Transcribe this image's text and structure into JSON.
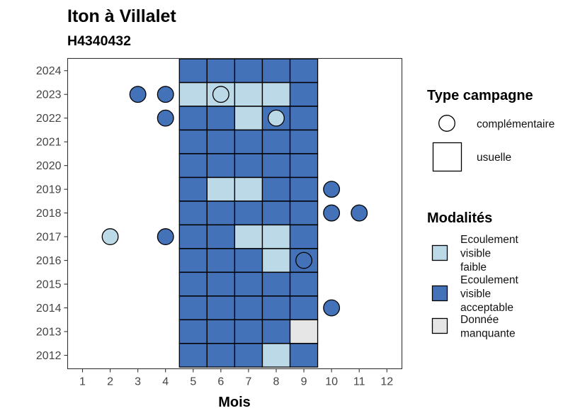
{
  "chart_data": {
    "type": "heatmap",
    "title": "Iton à Villalet",
    "subtitle": "H4340432",
    "xlabel": "Mois",
    "ylabel": "",
    "x_categories": [
      1,
      2,
      3,
      4,
      5,
      6,
      7,
      8,
      9,
      10,
      11,
      12
    ],
    "y_categories": [
      2012,
      2013,
      2014,
      2015,
      2016,
      2017,
      2018,
      2019,
      2020,
      2021,
      2022,
      2023,
      2024
    ],
    "grid": false,
    "legend_placement": "right",
    "legend_shape": {
      "title": "Type campagne",
      "entries": [
        {
          "key": "complementaire",
          "label": "complémentaire",
          "shape": "circle"
        },
        {
          "key": "usuelle",
          "label": "usuelle",
          "shape": "square"
        }
      ]
    },
    "legend_fill": {
      "title": "Modalités",
      "entries": [
        {
          "key": "faible",
          "label": [
            "Ecoulement",
            "visible",
            "faible"
          ],
          "color": "#bcd9e8"
        },
        {
          "key": "acceptable",
          "label": [
            "Ecoulement",
            "visible",
            "acceptable"
          ],
          "color": "#4472b8"
        },
        {
          "key": "manquante",
          "label": [
            "Donnée",
            "manquante"
          ],
          "color": "#e6e6e6"
        }
      ]
    },
    "colors": {
      "faible": "#bcd9e8",
      "acceptable": "#4472b8",
      "manquante": "#e6e6e6"
    },
    "usuelle_cells": [
      {
        "year": 2012,
        "month": 5,
        "modalite": "acceptable"
      },
      {
        "year": 2012,
        "month": 6,
        "modalite": "acceptable"
      },
      {
        "year": 2012,
        "month": 7,
        "modalite": "acceptable"
      },
      {
        "year": 2012,
        "month": 8,
        "modalite": "faible"
      },
      {
        "year": 2012,
        "month": 9,
        "modalite": "acceptable"
      },
      {
        "year": 2013,
        "month": 5,
        "modalite": "acceptable"
      },
      {
        "year": 2013,
        "month": 6,
        "modalite": "acceptable"
      },
      {
        "year": 2013,
        "month": 7,
        "modalite": "acceptable"
      },
      {
        "year": 2013,
        "month": 8,
        "modalite": "acceptable"
      },
      {
        "year": 2013,
        "month": 9,
        "modalite": "manquante"
      },
      {
        "year": 2014,
        "month": 5,
        "modalite": "acceptable"
      },
      {
        "year": 2014,
        "month": 6,
        "modalite": "acceptable"
      },
      {
        "year": 2014,
        "month": 7,
        "modalite": "acceptable"
      },
      {
        "year": 2014,
        "month": 8,
        "modalite": "acceptable"
      },
      {
        "year": 2014,
        "month": 9,
        "modalite": "acceptable"
      },
      {
        "year": 2015,
        "month": 5,
        "modalite": "acceptable"
      },
      {
        "year": 2015,
        "month": 6,
        "modalite": "acceptable"
      },
      {
        "year": 2015,
        "month": 7,
        "modalite": "acceptable"
      },
      {
        "year": 2015,
        "month": 8,
        "modalite": "acceptable"
      },
      {
        "year": 2015,
        "month": 9,
        "modalite": "acceptable"
      },
      {
        "year": 2016,
        "month": 5,
        "modalite": "acceptable"
      },
      {
        "year": 2016,
        "month": 6,
        "modalite": "acceptable"
      },
      {
        "year": 2016,
        "month": 7,
        "modalite": "acceptable"
      },
      {
        "year": 2016,
        "month": 8,
        "modalite": "faible"
      },
      {
        "year": 2016,
        "month": 9,
        "modalite": "acceptable"
      },
      {
        "year": 2017,
        "month": 5,
        "modalite": "acceptable"
      },
      {
        "year": 2017,
        "month": 6,
        "modalite": "acceptable"
      },
      {
        "year": 2017,
        "month": 7,
        "modalite": "faible"
      },
      {
        "year": 2017,
        "month": 8,
        "modalite": "faible"
      },
      {
        "year": 2017,
        "month": 9,
        "modalite": "acceptable"
      },
      {
        "year": 2018,
        "month": 5,
        "modalite": "acceptable"
      },
      {
        "year": 2018,
        "month": 6,
        "modalite": "acceptable"
      },
      {
        "year": 2018,
        "month": 7,
        "modalite": "acceptable"
      },
      {
        "year": 2018,
        "month": 8,
        "modalite": "acceptable"
      },
      {
        "year": 2018,
        "month": 9,
        "modalite": "acceptable"
      },
      {
        "year": 2019,
        "month": 5,
        "modalite": "acceptable"
      },
      {
        "year": 2019,
        "month": 6,
        "modalite": "faible"
      },
      {
        "year": 2019,
        "month": 7,
        "modalite": "faible"
      },
      {
        "year": 2019,
        "month": 8,
        "modalite": "acceptable"
      },
      {
        "year": 2019,
        "month": 9,
        "modalite": "acceptable"
      },
      {
        "year": 2020,
        "month": 5,
        "modalite": "acceptable"
      },
      {
        "year": 2020,
        "month": 6,
        "modalite": "acceptable"
      },
      {
        "year": 2020,
        "month": 7,
        "modalite": "acceptable"
      },
      {
        "year": 2020,
        "month": 8,
        "modalite": "acceptable"
      },
      {
        "year": 2020,
        "month": 9,
        "modalite": "acceptable"
      },
      {
        "year": 2021,
        "month": 5,
        "modalite": "acceptable"
      },
      {
        "year": 2021,
        "month": 6,
        "modalite": "acceptable"
      },
      {
        "year": 2021,
        "month": 7,
        "modalite": "acceptable"
      },
      {
        "year": 2021,
        "month": 8,
        "modalite": "acceptable"
      },
      {
        "year": 2021,
        "month": 9,
        "modalite": "acceptable"
      },
      {
        "year": 2022,
        "month": 5,
        "modalite": "acceptable"
      },
      {
        "year": 2022,
        "month": 6,
        "modalite": "acceptable"
      },
      {
        "year": 2022,
        "month": 7,
        "modalite": "faible"
      },
      {
        "year": 2022,
        "month": 8,
        "modalite": "acceptable"
      },
      {
        "year": 2022,
        "month": 9,
        "modalite": "acceptable"
      },
      {
        "year": 2023,
        "month": 5,
        "modalite": "faible"
      },
      {
        "year": 2023,
        "month": 6,
        "modalite": "faible"
      },
      {
        "year": 2023,
        "month": 7,
        "modalite": "faible"
      },
      {
        "year": 2023,
        "month": 8,
        "modalite": "faible"
      },
      {
        "year": 2023,
        "month": 9,
        "modalite": "acceptable"
      },
      {
        "year": 2024,
        "month": 5,
        "modalite": "acceptable"
      },
      {
        "year": 2024,
        "month": 6,
        "modalite": "acceptable"
      },
      {
        "year": 2024,
        "month": 7,
        "modalite": "acceptable"
      },
      {
        "year": 2024,
        "month": 8,
        "modalite": "acceptable"
      },
      {
        "year": 2024,
        "month": 9,
        "modalite": "acceptable"
      }
    ],
    "complementaire_points": [
      {
        "year": 2023,
        "month": 3,
        "modalite": "acceptable"
      },
      {
        "year": 2023,
        "month": 4,
        "modalite": "acceptable"
      },
      {
        "year": 2023,
        "month": 6,
        "modalite": "faible"
      },
      {
        "year": 2022,
        "month": 4,
        "modalite": "acceptable"
      },
      {
        "year": 2022,
        "month": 8,
        "modalite": "faible"
      },
      {
        "year": 2019,
        "month": 10,
        "modalite": "acceptable"
      },
      {
        "year": 2018,
        "month": 10,
        "modalite": "acceptable"
      },
      {
        "year": 2018,
        "month": 11,
        "modalite": "acceptable"
      },
      {
        "year": 2017,
        "month": 2,
        "modalite": "faible"
      },
      {
        "year": 2017,
        "month": 4,
        "modalite": "acceptable"
      },
      {
        "year": 2016,
        "month": 9,
        "modalite": "acceptable"
      },
      {
        "year": 2014,
        "month": 10,
        "modalite": "acceptable"
      }
    ]
  }
}
